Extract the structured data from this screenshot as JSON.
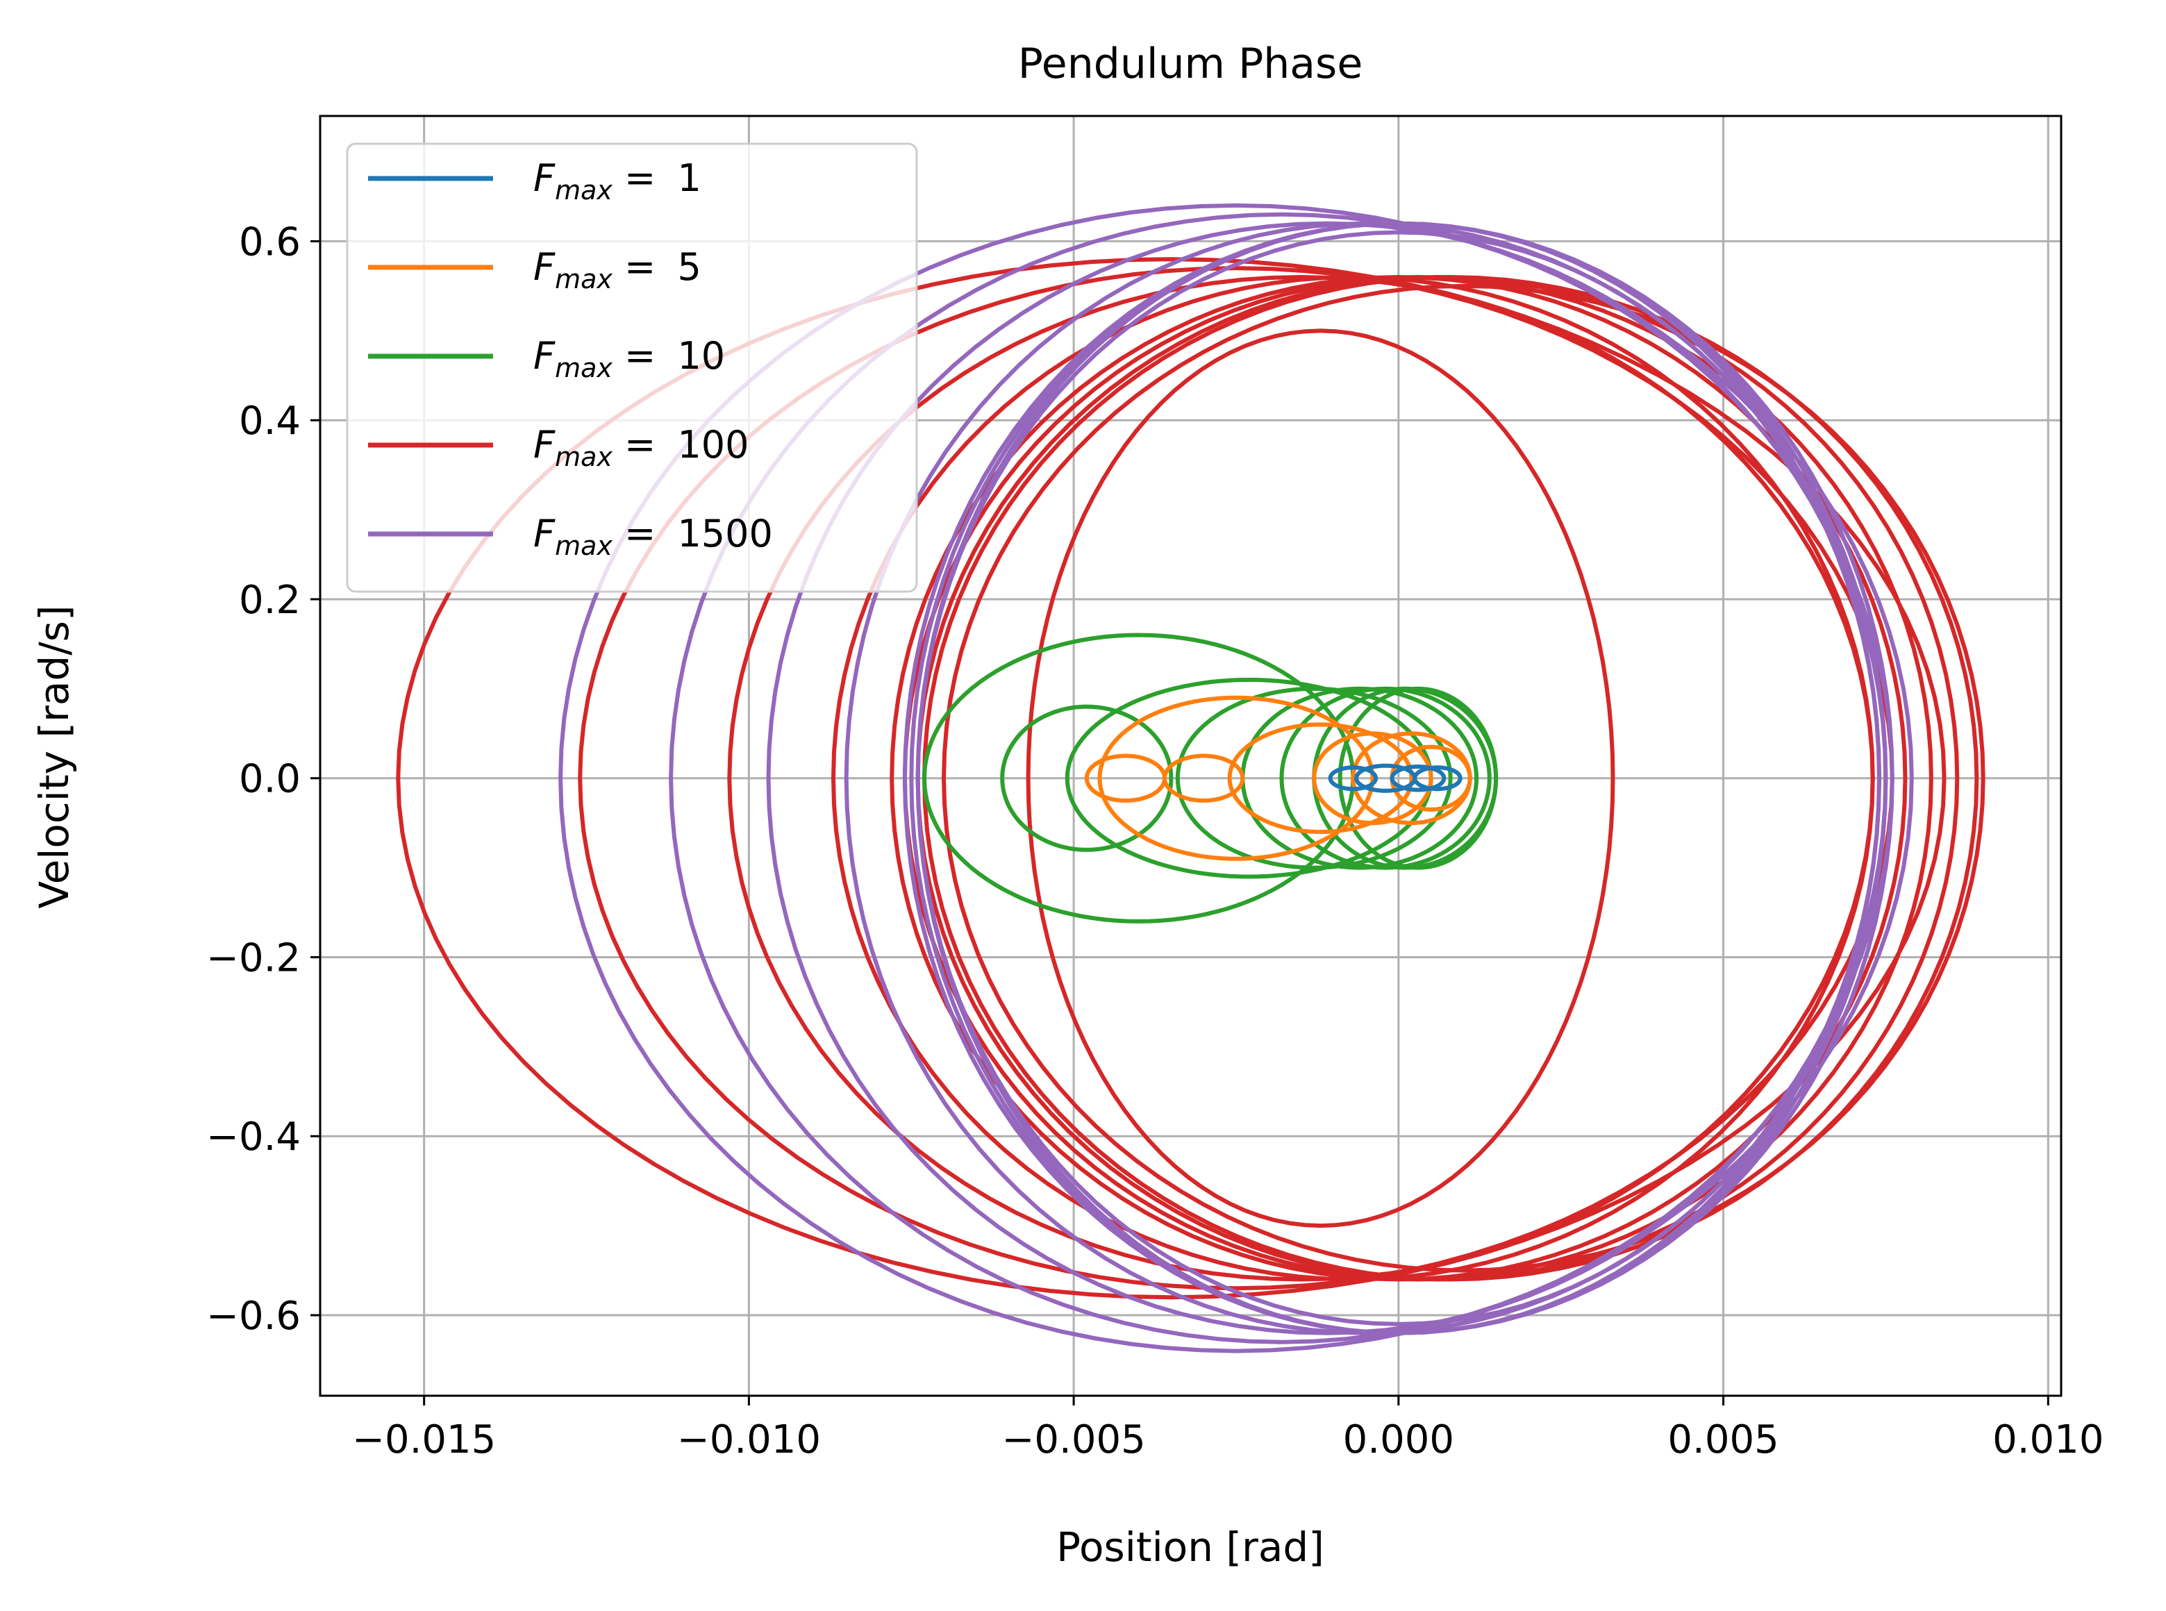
{
  "chart_data": {
    "type": "line",
    "title": "Pendulum Phase",
    "xlabel": "Position [rad]",
    "ylabel": "Velocity [rad/s]",
    "xlim": [
      -0.0166,
      0.0102
    ],
    "ylim": [
      -0.69,
      0.74
    ],
    "xticks": [
      -0.015,
      -0.01,
      -0.005,
      0.0,
      0.005,
      0.01
    ],
    "xtick_labels": [
      "−0.015",
      "−0.010",
      "−0.005",
      "0.000",
      "0.005",
      "0.010"
    ],
    "yticks": [
      -0.6,
      -0.4,
      -0.2,
      0.0,
      0.2,
      0.4,
      0.6
    ],
    "ytick_labels": [
      "−0.6",
      "−0.4",
      "−0.2",
      "0.0",
      "0.2",
      "0.4",
      "0.6"
    ],
    "grid": true,
    "legend_position": "top-left",
    "series": [
      {
        "name": "1",
        "color": "#1f77b4",
        "loops": [
          {
            "cx": -0.0007,
            "cy": 0.0,
            "rx": 0.00035,
            "ry": 0.012
          },
          {
            "cx": -0.0002,
            "cy": 0.0,
            "rx": 0.00045,
            "ry": 0.014
          },
          {
            "cx": 0.0003,
            "cy": 0.0,
            "rx": 0.0004,
            "ry": 0.013
          },
          {
            "cx": 0.0006,
            "cy": 0.0,
            "rx": 0.00035,
            "ry": 0.012
          }
        ]
      },
      {
        "name": "5",
        "color": "#ff7f0e",
        "loops": [
          {
            "cx": -0.0042,
            "cy": 0.0,
            "rx": 0.0006,
            "ry": 0.025
          },
          {
            "cx": -0.003,
            "cy": 0.0,
            "rx": 0.0006,
            "ry": 0.025
          },
          {
            "cx": -0.0025,
            "cy": 0.0,
            "rx": 0.0021,
            "ry": 0.09
          },
          {
            "cx": -0.0012,
            "cy": 0.0,
            "rx": 0.0014,
            "ry": 0.06
          },
          {
            "cx": -0.0004,
            "cy": 0.0,
            "rx": 0.0009,
            "ry": 0.05
          },
          {
            "cx": 0.0002,
            "cy": 0.0,
            "rx": 0.0009,
            "ry": 0.05
          },
          {
            "cx": 0.0005,
            "cy": 0.0,
            "rx": 0.0006,
            "ry": 0.035
          }
        ]
      },
      {
        "name": "10",
        "color": "#2ca02c",
        "loops": [
          {
            "cx": -0.004,
            "cy": 0.0,
            "rx": 0.0033,
            "ry": 0.16
          },
          {
            "cx": -0.0048,
            "cy": 0.0,
            "rx": 0.0013,
            "ry": 0.08
          },
          {
            "cx": -0.0023,
            "cy": 0.0,
            "rx": 0.0028,
            "ry": 0.11
          },
          {
            "cx": -0.0013,
            "cy": 0.0,
            "rx": 0.0021,
            "ry": 0.1
          },
          {
            "cx": -0.0006,
            "cy": 0.0,
            "rx": 0.0018,
            "ry": 0.1
          },
          {
            "cx": -0.0002,
            "cy": 0.0,
            "rx": 0.0016,
            "ry": 0.1
          },
          {
            "cx": 0.0001,
            "cy": 0.0,
            "rx": 0.0014,
            "ry": 0.1
          },
          {
            "cx": 0.0003,
            "cy": 0.0,
            "rx": 0.0012,
            "ry": 0.1
          }
        ]
      },
      {
        "name": "100",
        "color": "#d62728",
        "loops": [
          {
            "cx": -0.0035,
            "cy": 0.0,
            "rx": 0.0119,
            "ry": 0.58
          },
          {
            "cx": -0.0025,
            "cy": 0.0,
            "rx": 0.0101,
            "ry": 0.57
          },
          {
            "cx": -0.0015,
            "cy": 0.0,
            "rx": 0.0088,
            "ry": 0.56
          },
          {
            "cx": -0.0007,
            "cy": 0.0,
            "rx": 0.008,
            "ry": 0.56
          },
          {
            "cx": 0.0,
            "cy": 0.0,
            "rx": 0.0078,
            "ry": 0.56
          },
          {
            "cx": 0.0003,
            "cy": 0.0,
            "rx": 0.0079,
            "ry": 0.56
          },
          {
            "cx": 0.0006,
            "cy": 0.0,
            "rx": 0.008,
            "ry": 0.56
          },
          {
            "cx": 0.0008,
            "cy": 0.0,
            "rx": 0.0081,
            "ry": 0.56
          },
          {
            "cx": 0.001,
            "cy": 0.0,
            "rx": 0.008,
            "ry": 0.55
          },
          {
            "cx": -0.0012,
            "cy": 0.0,
            "rx": 0.0045,
            "ry": 0.5
          }
        ]
      },
      {
        "name": "1500",
        "color": "#9467bd",
        "loops": [
          {
            "cx": -0.0025,
            "cy": 0.0,
            "rx": 0.0104,
            "ry": 0.64
          },
          {
            "cx": -0.0018,
            "cy": 0.0,
            "rx": 0.0094,
            "ry": 0.63
          },
          {
            "cx": -0.0011,
            "cy": 0.0,
            "rx": 0.0086,
            "ry": 0.62
          },
          {
            "cx": -0.0005,
            "cy": 0.0,
            "rx": 0.008,
            "ry": 0.62
          },
          {
            "cx": 0.0,
            "cy": 0.0,
            "rx": 0.0076,
            "ry": 0.62
          },
          {
            "cx": 0.0,
            "cy": 0.0,
            "rx": 0.0075,
            "ry": 0.62
          },
          {
            "cx": 0.0,
            "cy": 0.0,
            "rx": 0.0074,
            "ry": 0.62
          },
          {
            "cx": 0.0,
            "cy": 0.0,
            "rx": 0.0074,
            "ry": 0.61
          }
        ]
      }
    ]
  },
  "legend": {
    "prefix": "F",
    "subscript": "max",
    "equals": " = "
  }
}
